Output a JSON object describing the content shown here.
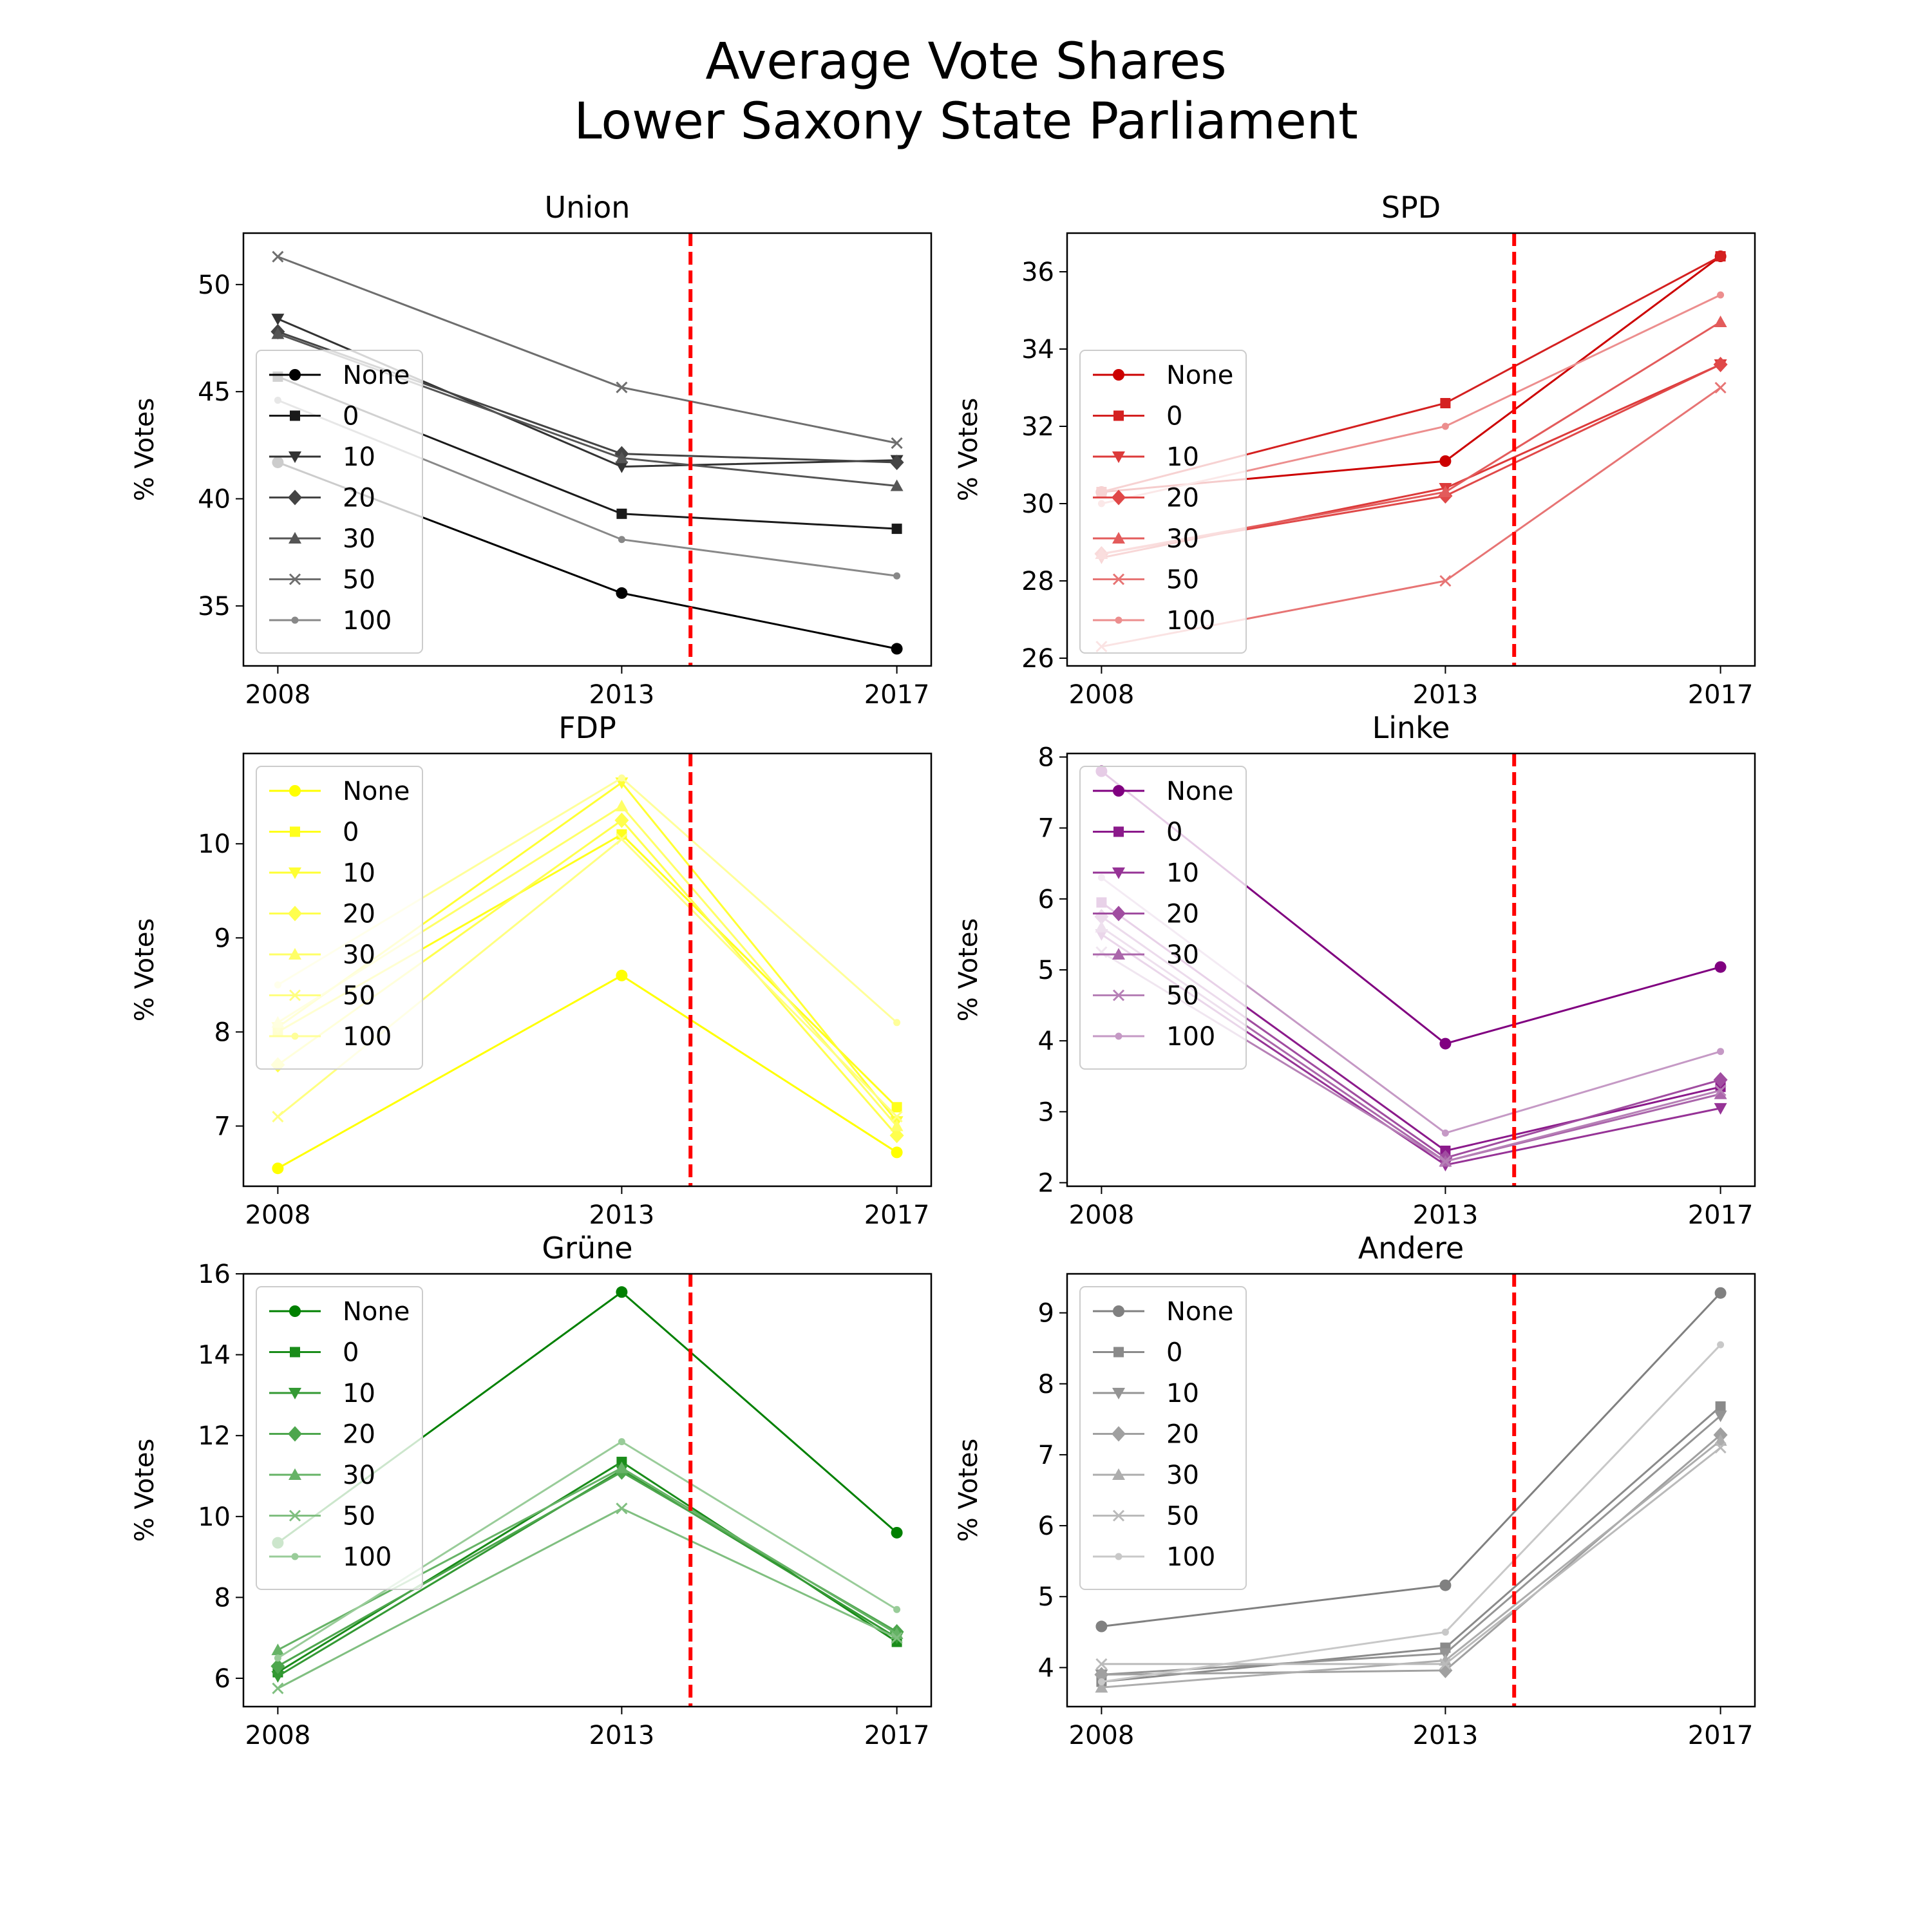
{
  "figure": {
    "title_line1": "Average Vote Shares",
    "title_line2": "Lower Saxony State Parliament"
  },
  "chart_data": [
    {
      "type": "line",
      "title": "Union",
      "xlabel": "",
      "ylabel": "% Votes",
      "x": [
        2008,
        2013,
        2017
      ],
      "xticks": [
        "2008",
        "2013",
        "2017"
      ],
      "ylim": [
        32.2,
        52.4
      ],
      "yticks": [
        35,
        40,
        45,
        50
      ],
      "xlim": [
        2007.5,
        2017.5
      ],
      "vline_x": 2014.0,
      "vline_color": "#ff0000",
      "legend_position": "lower-left",
      "series": [
        {
          "name": "None",
          "values": [
            41.7,
            35.6,
            33.0
          ],
          "color": "#000000",
          "marker": "circle"
        },
        {
          "name": "0",
          "values": [
            45.7,
            39.3,
            38.6
          ],
          "color": "#1a1a1a",
          "marker": "square"
        },
        {
          "name": "10",
          "values": [
            48.4,
            41.5,
            41.8
          ],
          "color": "#333333",
          "marker": "triangle-down"
        },
        {
          "name": "20",
          "values": [
            47.8,
            42.1,
            41.7
          ],
          "color": "#444444",
          "marker": "diamond"
        },
        {
          "name": "30",
          "values": [
            47.7,
            41.9,
            40.6
          ],
          "color": "#555555",
          "marker": "triangle-up"
        },
        {
          "name": "50",
          "values": [
            51.3,
            45.2,
            42.6
          ],
          "color": "#6e6e6e",
          "marker": "x"
        },
        {
          "name": "100",
          "values": [
            44.6,
            38.1,
            36.4
          ],
          "color": "#888888",
          "marker": "dot"
        }
      ]
    },
    {
      "type": "line",
      "title": "SPD",
      "xlabel": "",
      "ylabel": "% Votes",
      "x": [
        2008,
        2013,
        2017
      ],
      "xticks": [
        "2008",
        "2013",
        "2017"
      ],
      "ylim": [
        25.8,
        37.0
      ],
      "yticks": [
        26,
        28,
        30,
        32,
        34,
        36
      ],
      "xlim": [
        2007.5,
        2017.5
      ],
      "vline_x": 2014.0,
      "vline_color": "#ff0000",
      "legend_position": "lower-left",
      "series": [
        {
          "name": "None",
          "values": [
            30.3,
            31.1,
            36.4
          ],
          "color": "#cc0000",
          "marker": "circle"
        },
        {
          "name": "0",
          "values": [
            30.3,
            32.6,
            36.4
          ],
          "color": "#d42020",
          "marker": "square"
        },
        {
          "name": "10",
          "values": [
            28.6,
            30.4,
            33.6
          ],
          "color": "#dc3a3a",
          "marker": "triangle-down"
        },
        {
          "name": "20",
          "values": [
            28.7,
            30.2,
            33.6
          ],
          "color": "#e04848",
          "marker": "diamond"
        },
        {
          "name": "30",
          "values": [
            28.7,
            30.3,
            34.7
          ],
          "color": "#e35b5b",
          "marker": "triangle-up"
        },
        {
          "name": "50",
          "values": [
            26.3,
            28.0,
            33.0
          ],
          "color": "#e77474",
          "marker": "x"
        },
        {
          "name": "100",
          "values": [
            30.0,
            32.0,
            35.4
          ],
          "color": "#ec8e8e",
          "marker": "dot"
        }
      ]
    },
    {
      "type": "line",
      "title": "FDP",
      "xlabel": "",
      "ylabel": "% Votes",
      "x": [
        2008,
        2013,
        2017
      ],
      "xticks": [
        "2008",
        "2013",
        "2017"
      ],
      "ylim": [
        6.36,
        10.96
      ],
      "yticks": [
        7,
        8,
        9,
        10
      ],
      "xlim": [
        2007.5,
        2017.5
      ],
      "vline_x": 2014.0,
      "vline_color": "#ff0000",
      "legend_position": "upper-left",
      "series": [
        {
          "name": "None",
          "values": [
            6.55,
            8.6,
            6.72
          ],
          "color": "#ffff00",
          "marker": "circle"
        },
        {
          "name": "0",
          "values": [
            8.0,
            10.1,
            7.2
          ],
          "color": "#ffff1a",
          "marker": "square"
        },
        {
          "name": "10",
          "values": [
            8.05,
            10.65,
            7.05
          ],
          "color": "#ffff33",
          "marker": "triangle-down"
        },
        {
          "name": "20",
          "values": [
            7.65,
            10.25,
            6.9
          ],
          "color": "#ffff4d",
          "marker": "diamond"
        },
        {
          "name": "30",
          "values": [
            8.1,
            10.4,
            7.0
          ],
          "color": "#ffff66",
          "marker": "triangle-up"
        },
        {
          "name": "50",
          "values": [
            7.1,
            10.05,
            7.1
          ],
          "color": "#ffff80",
          "marker": "x"
        },
        {
          "name": "100",
          "values": [
            8.5,
            10.7,
            8.1
          ],
          "color": "#ffff99",
          "marker": "dot"
        }
      ]
    },
    {
      "type": "line",
      "title": "Linke",
      "xlabel": "",
      "ylabel": "% Votes",
      "x": [
        2008,
        2013,
        2017
      ],
      "xticks": [
        "2008",
        "2013",
        "2017"
      ],
      "ylim": [
        1.95,
        8.05
      ],
      "yticks": [
        2,
        3,
        4,
        5,
        6,
        7,
        8
      ],
      "xlim": [
        2007.5,
        2017.5
      ],
      "vline_x": 2014.0,
      "vline_color": "#ff0000",
      "legend_position": "upper-left",
      "series": [
        {
          "name": "None",
          "values": [
            7.8,
            3.96,
            5.04
          ],
          "color": "#800080",
          "marker": "circle"
        },
        {
          "name": "0",
          "values": [
            5.95,
            2.45,
            3.35
          ],
          "color": "#8b1a8b",
          "marker": "square"
        },
        {
          "name": "10",
          "values": [
            5.5,
            2.25,
            3.05
          ],
          "color": "#963396",
          "marker": "triangle-down"
        },
        {
          "name": "20",
          "values": [
            5.75,
            2.35,
            3.45
          ],
          "color": "#a04ca0",
          "marker": "diamond"
        },
        {
          "name": "30",
          "values": [
            5.6,
            2.3,
            3.25
          ],
          "color": "#ab66ab",
          "marker": "triangle-up"
        },
        {
          "name": "50",
          "values": [
            5.25,
            2.3,
            3.3
          ],
          "color": "#b680b6",
          "marker": "x"
        },
        {
          "name": "100",
          "values": [
            6.3,
            2.7,
            3.85
          ],
          "color": "#c599c5",
          "marker": "dot"
        }
      ]
    },
    {
      "type": "line",
      "title": "Grüne",
      "xlabel": "",
      "ylabel": "% Votes",
      "x": [
        2008,
        2013,
        2017
      ],
      "xticks": [
        "2008",
        "2013",
        "2017"
      ],
      "ylim": [
        5.3,
        16.0
      ],
      "yticks": [
        6,
        8,
        10,
        12,
        14,
        16
      ],
      "xlim": [
        2007.5,
        2017.5
      ],
      "vline_x": 2014.0,
      "vline_color": "#ff0000",
      "legend_position": "upper-left",
      "series": [
        {
          "name": "None",
          "values": [
            9.35,
            15.55,
            9.6
          ],
          "color": "#008000",
          "marker": "circle"
        },
        {
          "name": "0",
          "values": [
            6.15,
            11.35,
            6.9
          ],
          "color": "#1a8c1a",
          "marker": "square"
        },
        {
          "name": "10",
          "values": [
            6.05,
            11.15,
            7.0
          ],
          "color": "#339933",
          "marker": "triangle-down"
        },
        {
          "name": "20",
          "values": [
            6.3,
            11.1,
            7.15
          ],
          "color": "#4da64d",
          "marker": "diamond"
        },
        {
          "name": "30",
          "values": [
            6.7,
            11.2,
            7.1
          ],
          "color": "#66b366",
          "marker": "triangle-up"
        },
        {
          "name": "50",
          "values": [
            5.75,
            10.2,
            7.0
          ],
          "color": "#80bf80",
          "marker": "x"
        },
        {
          "name": "100",
          "values": [
            6.5,
            11.85,
            7.7
          ],
          "color": "#99cc99",
          "marker": "dot"
        }
      ]
    },
    {
      "type": "line",
      "title": "Andere",
      "xlabel": "",
      "ylabel": "% Votes",
      "x": [
        2008,
        2013,
        2017
      ],
      "xticks": [
        "2008",
        "2013",
        "2017"
      ],
      "ylim": [
        3.45,
        9.55
      ],
      "yticks": [
        4,
        5,
        6,
        7,
        8,
        9
      ],
      "xlim": [
        2007.5,
        2017.5
      ],
      "vline_x": 2014.0,
      "vline_color": "#ff0000",
      "legend_position": "upper-left",
      "series": [
        {
          "name": "None",
          "values": [
            4.58,
            5.16,
            9.28
          ],
          "color": "#808080",
          "marker": "circle"
        },
        {
          "name": "0",
          "values": [
            3.8,
            4.28,
            7.68
          ],
          "color": "#8a8a8a",
          "marker": "square"
        },
        {
          "name": "10",
          "values": [
            3.9,
            4.2,
            7.55
          ],
          "color": "#949494",
          "marker": "triangle-down"
        },
        {
          "name": "20",
          "values": [
            3.9,
            3.96,
            7.28
          ],
          "color": "#a0a0a0",
          "marker": "diamond"
        },
        {
          "name": "30",
          "values": [
            3.72,
            4.1,
            7.2
          ],
          "color": "#adadad",
          "marker": "triangle-up"
        },
        {
          "name": "50",
          "values": [
            4.05,
            4.05,
            7.1
          ],
          "color": "#bababa",
          "marker": "x"
        },
        {
          "name": "100",
          "values": [
            3.8,
            4.5,
            8.55
          ],
          "color": "#c8c8c8",
          "marker": "dot"
        }
      ]
    }
  ]
}
